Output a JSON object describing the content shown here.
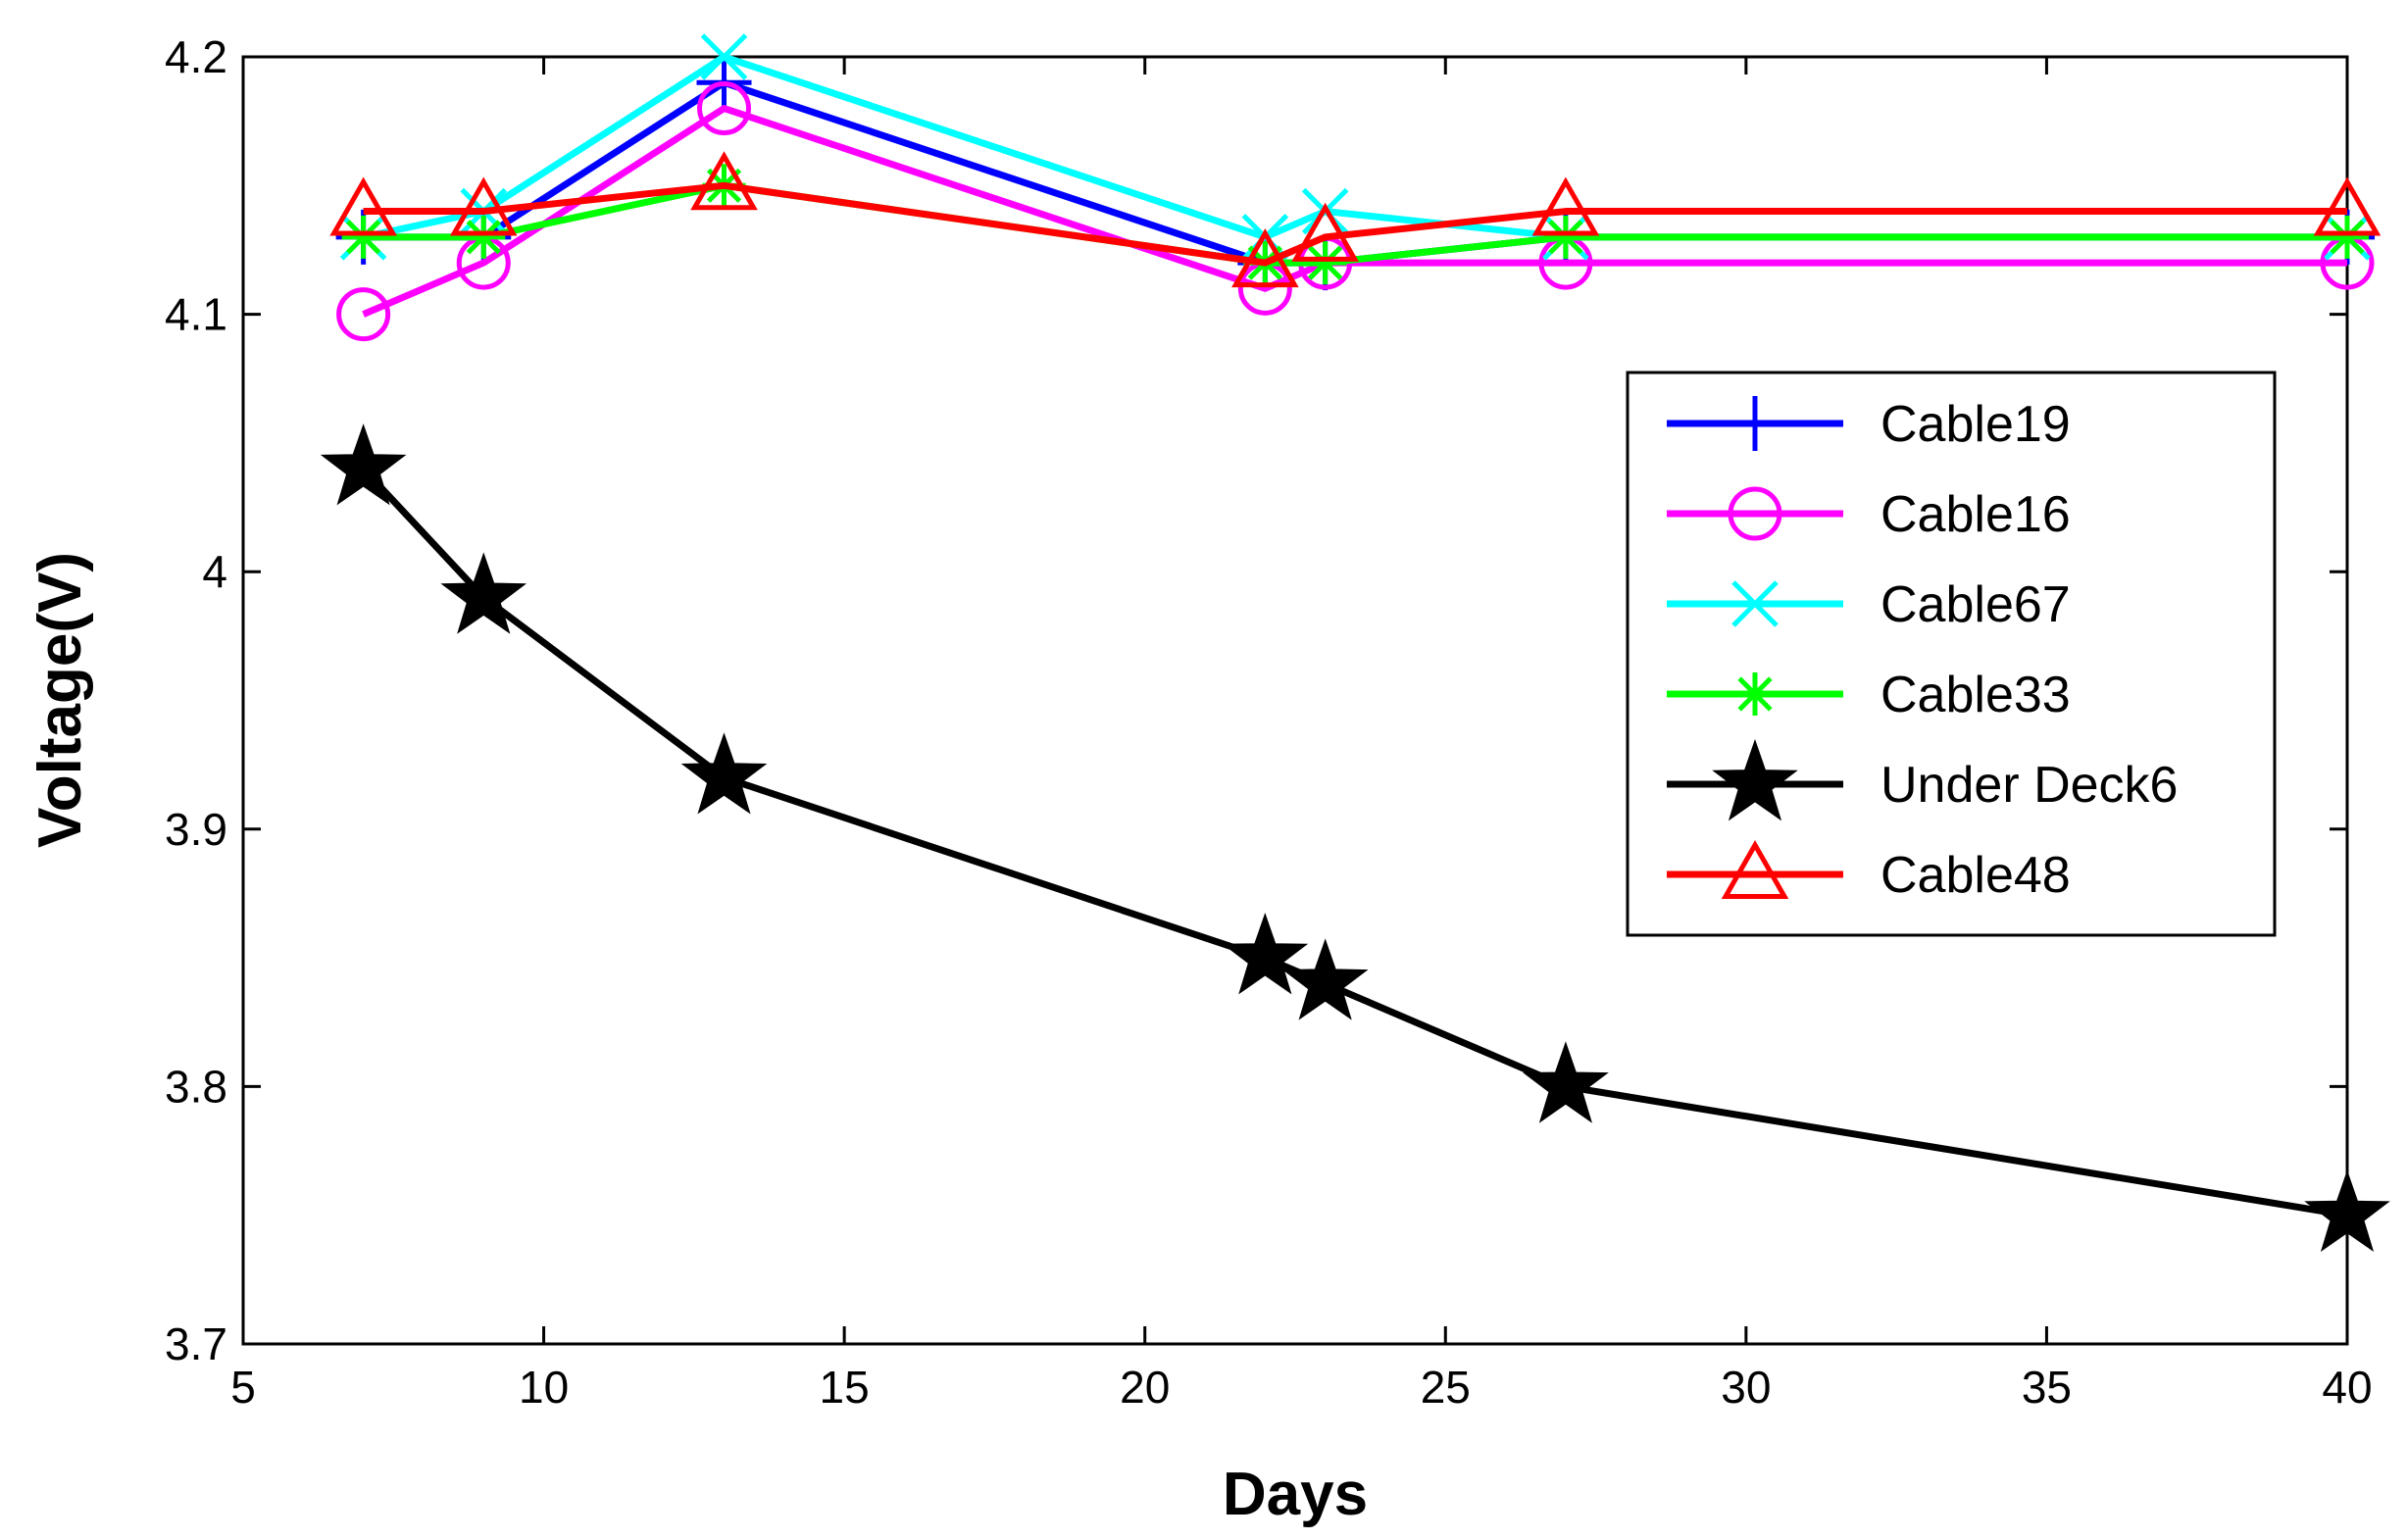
{
  "chart_data": {
    "type": "line",
    "title": "",
    "xlabel": "Days",
    "ylabel": "Voltage(V)",
    "xlim": [
      5,
      40
    ],
    "ylim": [
      3.7,
      4.2
    ],
    "xticks": [
      5,
      10,
      15,
      20,
      25,
      30,
      35,
      40
    ],
    "yticks": [
      3.7,
      3.8,
      3.9,
      4,
      4.1,
      4.2
    ],
    "xtick_labels": [
      "5",
      "10",
      "15",
      "20",
      "25",
      "30",
      "35",
      "40"
    ],
    "ytick_labels": [
      "3.7",
      "3.8",
      "3.9",
      "4",
      "4.1",
      "4.2"
    ],
    "grid": false,
    "legend_position": "right",
    "x": [
      7,
      9,
      13,
      22,
      23,
      27,
      40
    ],
    "series": [
      {
        "name": "Cable19",
        "color": "#0000ff",
        "marker": "plus",
        "values": [
          4.13,
          4.13,
          4.19,
          4.12,
          4.12,
          4.13,
          4.13
        ]
      },
      {
        "name": "Cable16",
        "color": "#ff00ff",
        "marker": "circle",
        "values": [
          4.1,
          4.12,
          4.18,
          4.11,
          4.12,
          4.12,
          4.12
        ]
      },
      {
        "name": "Cable67",
        "color": "#00ffff",
        "marker": "x",
        "values": [
          4.13,
          4.14,
          4.2,
          4.13,
          4.14,
          4.13,
          4.13
        ]
      },
      {
        "name": "Cable33",
        "color": "#00ff00",
        "marker": "asterisk",
        "values": [
          4.13,
          4.13,
          4.15,
          4.12,
          4.12,
          4.13,
          4.13
        ]
      },
      {
        "name": "Under Deck6",
        "color": "#000000",
        "marker": "star",
        "values": [
          4.04,
          3.99,
          3.92,
          3.85,
          3.84,
          3.8,
          3.75
        ]
      },
      {
        "name": "Cable48",
        "color": "#ff0000",
        "marker": "triangle",
        "values": [
          4.14,
          4.14,
          4.15,
          4.12,
          4.13,
          4.14,
          4.14
        ]
      }
    ]
  }
}
